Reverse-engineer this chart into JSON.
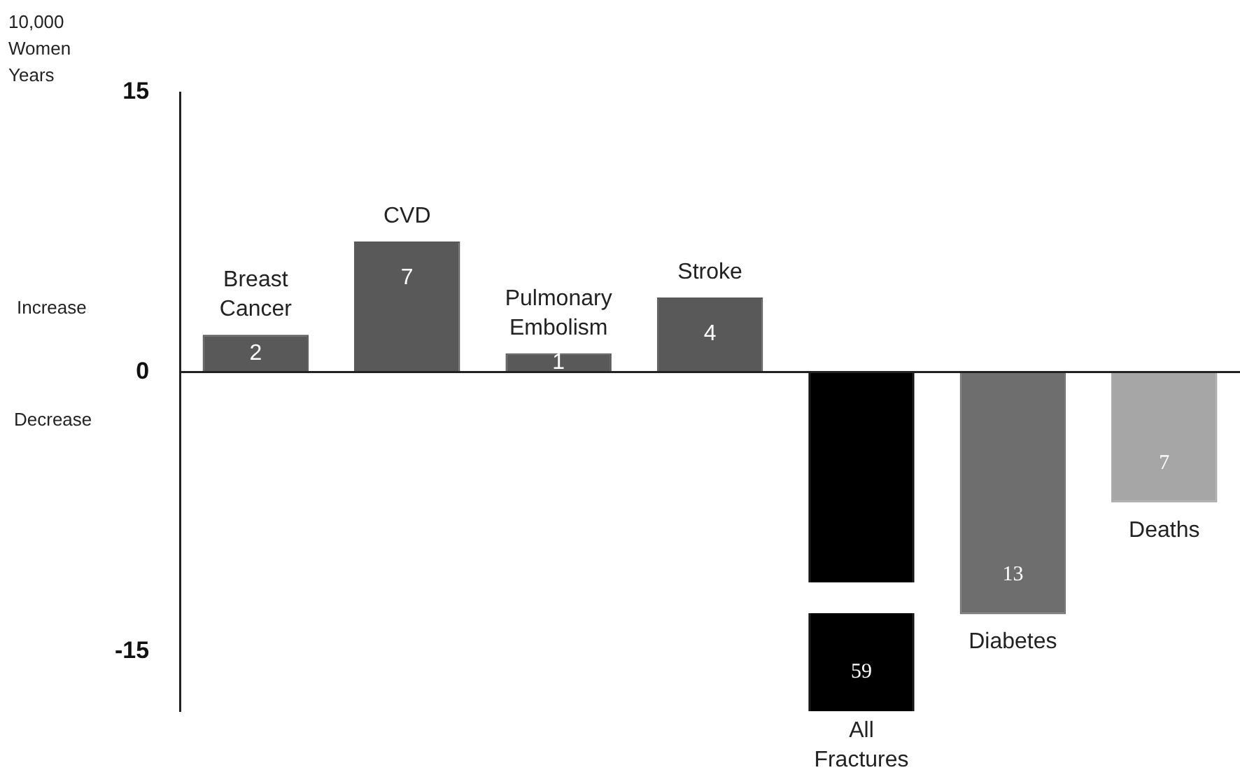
{
  "chart_data": {
    "type": "bar",
    "ylabel": "10,000 Women Years",
    "categories": [
      "Breast Cancer",
      "CVD",
      "Pulmonary Embolism",
      "Stroke",
      "All Fractures",
      "Diabetes",
      "Deaths"
    ],
    "values": [
      2,
      7,
      1,
      4,
      59,
      13,
      7
    ],
    "base": [
      0,
      0,
      0,
      0,
      -59,
      -13,
      -7
    ],
    "ref_lines": [
      {
        "axis": "y",
        "value": 0,
        "color": "#222222"
      }
    ],
    "colors": [
      "#595959",
      "#595959",
      "#595959",
      "#595959",
      "#000000",
      "#6e6e6e",
      "#a6a6a6"
    ],
    "data_labels": true,
    "ylim": [
      -18.2,
      15
    ],
    "yticks": [
      -15,
      0,
      15
    ],
    "grid": false,
    "legend": false,
    "annotations": [
      "Increase",
      "Decrease"
    ]
  }
}
